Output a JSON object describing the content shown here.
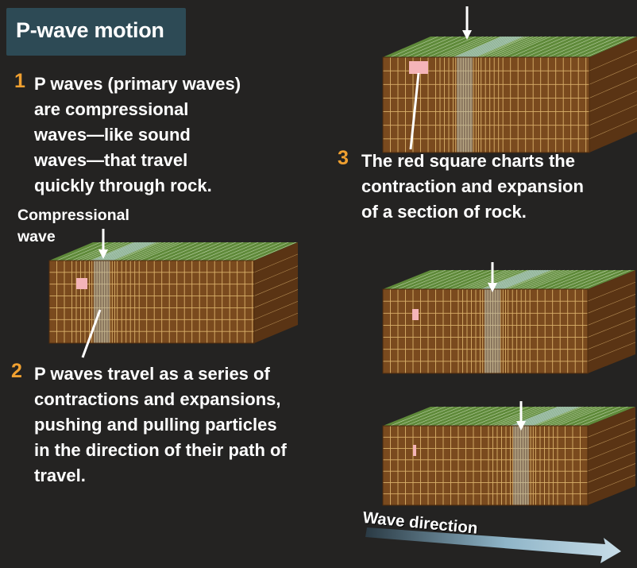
{
  "title": "P-wave motion",
  "step1": {
    "number": "1",
    "lines": [
      "P waves (primary waves)",
      "are compressional",
      "waves—like sound",
      "waves—that travel",
      "quickly through rock."
    ]
  },
  "compressional_label": [
    "Compressional",
    "wave"
  ],
  "step2": {
    "number": "2",
    "lines": [
      "P waves travel as a series of",
      "contractions and expansions,",
      "pushing and pulling particles",
      "in the direction of their path of",
      "travel."
    ]
  },
  "step3": {
    "number": "3",
    "lines": [
      "The red square charts the",
      "contraction and expansion",
      "of a section of rock."
    ]
  },
  "wave_direction_label": "Wave direction",
  "colors": {
    "background": "#242322",
    "title_box": "#2d4a55",
    "step_number": "#f0a030",
    "rock_front": "#7a4a1e",
    "rock_grid": "#d9b06a",
    "rock_top": "#5f8a3a",
    "compression_band": "#a9c9d6",
    "marker_square": "#f4b4b8",
    "arrow": "#ffffff"
  }
}
